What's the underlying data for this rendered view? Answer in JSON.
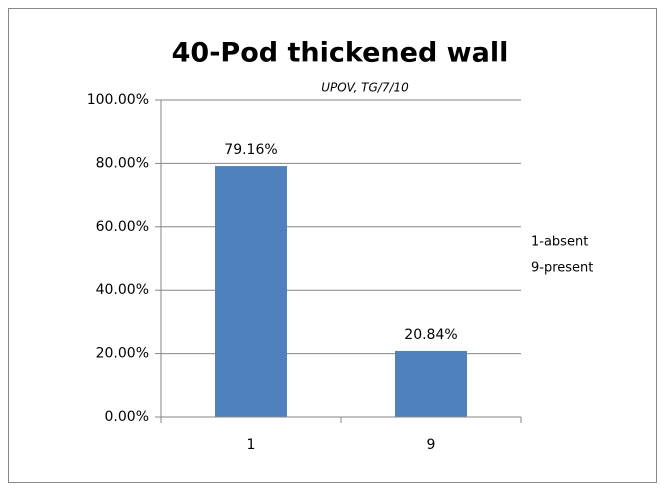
{
  "chart_data": {
    "type": "bar",
    "title": "40-Pod thickened wall",
    "subtitle": "UPOV, TG/7/10",
    "categories": [
      "1",
      "9"
    ],
    "values": [
      79.16,
      20.84
    ],
    "value_labels": [
      "79.16%",
      "20.84%"
    ],
    "color": "#4f81bd",
    "ylim": [
      0,
      100
    ],
    "yticks": [
      {
        "value": 0,
        "label": "0.00%"
      },
      {
        "value": 20,
        "label": "20.00%"
      },
      {
        "value": 40,
        "label": "40.00%"
      },
      {
        "value": 60,
        "label": "60.00%"
      },
      {
        "value": 80,
        "label": "80.00%"
      },
      {
        "value": 100,
        "label": "100.00%"
      }
    ],
    "grid": true,
    "annotations": [
      "1-absent",
      "9-present"
    ]
  }
}
